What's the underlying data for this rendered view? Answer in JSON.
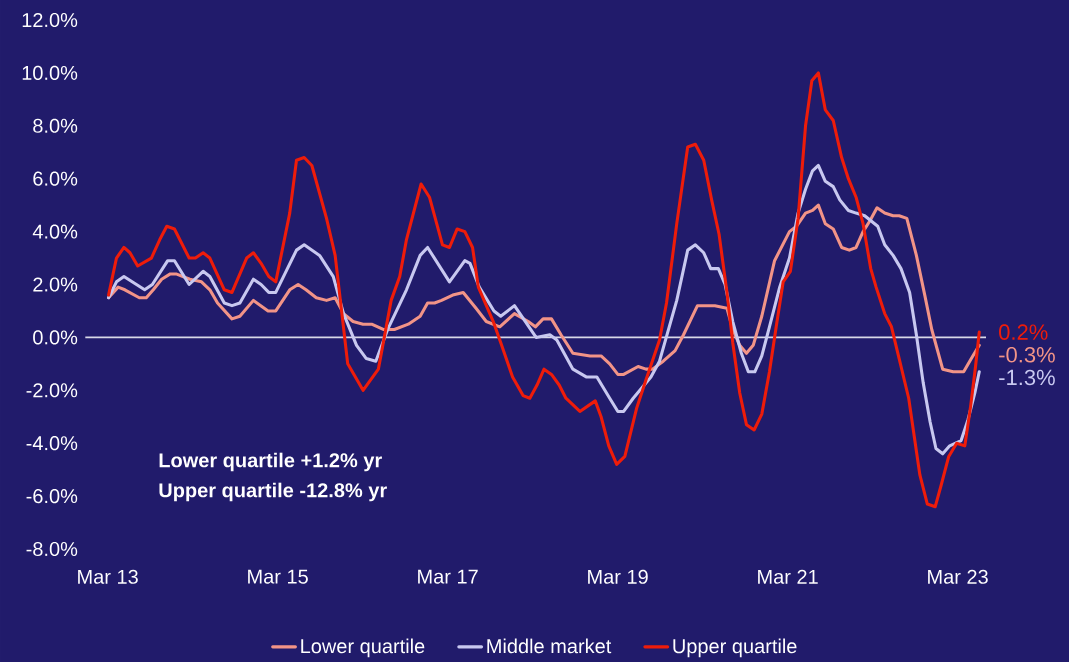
{
  "chart_data": {
    "type": "line",
    "xlim": [
      "2012-11-25",
      "2023-07-01"
    ],
    "ylim": [
      -8,
      12
    ],
    "xticks": [
      {
        "value": "2013-03",
        "label": "Mar 13"
      },
      {
        "value": "2015-03",
        "label": "Mar 15"
      },
      {
        "value": "2017-03",
        "label": "Mar 17"
      },
      {
        "value": "2019-03",
        "label": "Mar 19"
      },
      {
        "value": "2021-03",
        "label": "Mar 21"
      },
      {
        "value": "2023-03",
        "label": "Mar 23"
      }
    ],
    "yticks": [
      {
        "value": -8,
        "label": "-8.0%"
      },
      {
        "value": -6,
        "label": "-6.0%"
      },
      {
        "value": -4,
        "label": "-4.0%"
      },
      {
        "value": -2,
        "label": "-2.0%"
      },
      {
        "value": 0,
        "label": "0.0%"
      },
      {
        "value": 2,
        "label": "2.0%"
      },
      {
        "value": 4,
        "label": "4.0%"
      },
      {
        "value": 6,
        "label": "6.0%"
      },
      {
        "value": 8,
        "label": "8.0%"
      },
      {
        "value": 10,
        "label": "10.0%"
      },
      {
        "value": 12,
        "label": "12.0%"
      }
    ],
    "legend": "bottom",
    "marker": "none",
    "line_style": "solid",
    "ref_lines": [
      {
        "axis": "y",
        "value": 0,
        "color": "#d8d8e8"
      }
    ],
    "annotations": [
      "Lower quartile +1.2% yr",
      "Upper quartile -12.8% yr"
    ],
    "series": [
      {
        "name": "Lower quartile",
        "color": "#f29487",
        "x": [
          "2013-03-05",
          "2013-04-15",
          "2013-05-14",
          "2013-07-15",
          "2013-08-14",
          "2013-09-13",
          "2013-10-19",
          "2013-11-25",
          "2013-12-20",
          "2014-02-17",
          "2014-04-08",
          "2014-05-14",
          "2014-06-16",
          "2014-08-17",
          "2014-09-20",
          "2014-11-17",
          "2015-01-19",
          "2015-02-21",
          "2015-04-22",
          "2015-05-28",
          "2015-07-01",
          "2015-08-14",
          "2015-09-27",
          "2015-11-03",
          "2015-12-09",
          "2016-01-19",
          "2016-03-02",
          "2016-04-08",
          "2016-05-28",
          "2016-07-15",
          "2016-09-13",
          "2016-11-03",
          "2016-12-05",
          "2017-01-04",
          "2017-02-03",
          "2017-03-23",
          "2017-05-07",
          "2017-07-01",
          "2017-08-14",
          "2017-10-11",
          "2017-12-13",
          "2018-02-10",
          "2018-03-13",
          "2018-04-15",
          "2018-05-21",
          "2018-07-01",
          "2018-08-21",
          "2018-11-03",
          "2018-12-20",
          "2019-01-26",
          "2019-03-02",
          "2019-03-27",
          "2019-05-28",
          "2019-07-01",
          "2019-07-29",
          "2019-09-13",
          "2019-11-03",
          "2019-12-09",
          "2020-02-07",
          "2020-03-05",
          "2020-04-22",
          "2020-06-13",
          "2020-07-08",
          "2020-08-07",
          "2020-09-05",
          "2020-10-04",
          "2020-11-10",
          "2021-01-04",
          "2021-03-09",
          "2021-04-08",
          "2021-05-17",
          "2021-06-16",
          "2021-07-11",
          "2021-08-10",
          "2021-09-13",
          "2021-10-19",
          "2021-11-21",
          "2021-12-20",
          "2022-01-19",
          "2022-02-17",
          "2022-03-20",
          "2022-04-22",
          "2022-05-28",
          "2022-06-23",
          "2022-07-26",
          "2022-09-05",
          "2022-10-11",
          "2022-11-10",
          "2022-12-27",
          "2023-02-10",
          "2023-03-27",
          "2023-04-29",
          "2023-06-02"
        ],
        "values": [
          1.5,
          1.9,
          1.8,
          1.5,
          1.5,
          1.8,
          2.2,
          2.4,
          2.4,
          2.2,
          2.1,
          1.8,
          1.3,
          0.7,
          0.8,
          1.4,
          1.0,
          1.0,
          1.8,
          2.0,
          1.8,
          1.5,
          1.4,
          1.5,
          0.9,
          0.6,
          0.5,
          0.5,
          0.3,
          0.3,
          0.5,
          0.8,
          1.3,
          1.3,
          1.4,
          1.6,
          1.7,
          1.1,
          0.6,
          0.4,
          0.9,
          0.6,
          0.4,
          0.7,
          0.7,
          0.1,
          -0.6,
          -0.7,
          -0.7,
          -1.0,
          -1.4,
          -1.4,
          -1.1,
          -1.2,
          -1.2,
          -0.9,
          -0.5,
          0.1,
          1.2,
          1.2,
          1.2,
          1.1,
          0.3,
          -0.3,
          -0.6,
          -0.3,
          0.8,
          2.9,
          4.0,
          4.2,
          4.7,
          4.8,
          5.0,
          4.3,
          4.1,
          3.4,
          3.3,
          3.4,
          4.0,
          4.4,
          4.9,
          4.7,
          4.6,
          4.6,
          4.5,
          3.1,
          1.6,
          0.3,
          -1.2,
          -1.3,
          -1.3,
          -0.8,
          -0.3
        ],
        "value_labels": [
          null,
          null,
          null,
          null,
          null,
          null,
          null,
          null,
          null,
          null,
          null,
          null,
          null,
          null,
          null,
          null,
          null,
          null,
          null,
          null,
          null,
          null,
          null,
          null,
          null,
          null,
          null,
          null,
          null,
          null,
          null,
          null,
          null,
          null,
          null,
          null,
          null,
          null,
          null,
          null,
          null,
          null,
          null,
          null,
          null,
          null,
          null,
          null,
          null,
          null,
          null,
          null,
          null,
          null,
          null,
          null,
          null,
          null,
          null,
          null,
          null,
          null,
          null,
          null,
          null,
          null,
          null,
          null,
          null,
          null,
          null,
          null,
          null,
          null,
          null,
          null,
          null,
          null,
          null,
          null,
          null,
          null,
          null,
          null,
          null,
          null,
          null,
          null,
          null,
          null,
          null,
          null,
          "-0.3%"
        ]
      },
      {
        "name": "Middle market",
        "color": "#c8c8f0",
        "x": [
          "2013-03-05",
          "2013-04-08",
          "2013-05-10",
          "2013-08-07",
          "2013-09-09",
          "2013-11-14",
          "2013-12-13",
          "2014-02-14",
          "2014-04-15",
          "2014-05-14",
          "2014-07-15",
          "2014-08-17",
          "2014-09-20",
          "2014-11-17",
          "2014-12-20",
          "2015-01-22",
          "2015-02-21",
          "2015-05-21",
          "2015-06-23",
          "2015-07-26",
          "2015-08-28",
          "2015-10-26",
          "2015-12-09",
          "2016-02-03",
          "2016-03-16",
          "2016-04-26",
          "2016-06-16",
          "2016-09-05",
          "2016-11-03",
          "2016-12-05",
          "2017-03-09",
          "2017-05-14",
          "2017-06-05",
          "2017-07-15",
          "2017-09-16",
          "2017-10-15",
          "2017-12-13",
          "2018-03-16",
          "2018-05-14",
          "2018-06-13",
          "2018-08-21",
          "2018-10-19",
          "2018-12-02",
          "2019-01-26",
          "2019-03-02",
          "2019-03-27",
          "2019-05-07",
          "2019-07-22",
          "2019-08-28",
          "2019-11-10",
          "2019-12-27",
          "2020-01-29",
          "2020-03-05",
          "2020-04-04",
          "2020-05-07",
          "2020-06-05",
          "2020-07-08",
          "2020-08-14",
          "2020-09-13",
          "2020-10-11",
          "2020-11-10",
          "2020-12-13",
          "2021-01-26",
          "2021-03-09",
          "2021-04-15",
          "2021-05-17",
          "2021-06-16",
          "2021-07-11",
          "2021-08-10",
          "2021-09-13",
          "2021-10-11",
          "2021-11-17",
          "2021-12-20",
          "2022-01-26",
          "2022-03-23",
          "2022-04-22",
          "2022-05-28",
          "2022-07-01",
          "2022-08-07",
          "2022-09-05",
          "2022-10-04",
          "2022-11-03",
          "2022-11-28",
          "2022-12-27",
          "2023-01-26",
          "2023-03-16",
          "2023-04-15",
          "2023-05-14",
          "2023-06-02"
        ],
        "values": [
          1.5,
          2.1,
          2.3,
          1.8,
          2.0,
          2.9,
          2.9,
          2.0,
          2.5,
          2.3,
          1.3,
          1.2,
          1.3,
          2.2,
          2.0,
          1.7,
          1.7,
          3.3,
          3.5,
          3.3,
          3.1,
          2.3,
          0.9,
          -0.3,
          -0.8,
          -0.9,
          0.3,
          1.8,
          3.1,
          3.4,
          2.1,
          2.9,
          2.8,
          1.9,
          1.0,
          0.8,
          1.2,
          0.0,
          0.1,
          -0.1,
          -1.2,
          -1.5,
          -1.5,
          -2.3,
          -2.8,
          -2.8,
          -2.3,
          -1.5,
          -0.9,
          1.4,
          3.3,
          3.5,
          3.2,
          2.6,
          2.6,
          2.0,
          0.6,
          -0.6,
          -1.3,
          -1.3,
          -0.7,
          0.4,
          1.9,
          3.0,
          4.7,
          5.6,
          6.3,
          6.5,
          5.9,
          5.7,
          5.2,
          4.8,
          4.7,
          4.6,
          4.2,
          3.5,
          3.1,
          2.6,
          1.7,
          0.1,
          -1.7,
          -3.2,
          -4.2,
          -4.4,
          -4.1,
          -3.9,
          -3.1,
          -2.1,
          -1.3
        ],
        "value_labels": [
          null,
          null,
          null,
          null,
          null,
          null,
          null,
          null,
          null,
          null,
          null,
          null,
          null,
          null,
          null,
          null,
          null,
          null,
          null,
          null,
          null,
          null,
          null,
          null,
          null,
          null,
          null,
          null,
          null,
          null,
          null,
          null,
          null,
          null,
          null,
          null,
          null,
          null,
          null,
          null,
          null,
          null,
          null,
          null,
          null,
          null,
          null,
          null,
          null,
          null,
          null,
          null,
          null,
          null,
          null,
          null,
          null,
          null,
          null,
          null,
          null,
          null,
          null,
          null,
          null,
          null,
          null,
          null,
          null,
          null,
          null,
          null,
          null,
          null,
          null,
          null,
          null,
          null,
          null,
          null,
          null,
          null,
          null,
          null,
          null,
          null,
          null,
          null,
          "-1.3%"
        ]
      },
      {
        "name": "Upper quartile",
        "color": "#ee1c0a",
        "x": [
          "2013-03-05",
          "2013-04-08",
          "2013-05-10",
          "2013-06-05",
          "2013-07-08",
          "2013-09-05",
          "2013-10-11",
          "2013-11-10",
          "2013-12-13",
          "2014-02-14",
          "2014-03-13",
          "2014-04-15",
          "2014-05-14",
          "2014-07-15",
          "2014-08-17",
          "2014-10-19",
          "2014-11-17",
          "2014-12-20",
          "2015-01-22",
          "2015-02-21",
          "2015-04-22",
          "2015-05-21",
          "2015-06-23",
          "2015-07-26",
          "2015-09-27",
          "2015-11-03",
          "2015-12-27",
          "2016-03-02",
          "2016-05-07",
          "2016-07-01",
          "2016-08-07",
          "2016-09-05",
          "2016-11-07",
          "2016-12-13",
          "2017-02-07",
          "2017-03-09",
          "2017-04-11",
          "2017-05-14",
          "2017-06-16",
          "2017-07-11",
          "2017-09-13",
          "2017-10-19",
          "2017-12-05",
          "2018-01-19",
          "2018-02-17",
          "2018-03-20",
          "2018-04-19",
          "2018-05-21",
          "2018-06-23",
          "2018-07-22",
          "2018-09-20",
          "2018-11-25",
          "2018-12-20",
          "2019-01-22",
          "2019-02-25",
          "2019-04-01",
          "2019-05-21",
          "2019-07-01",
          "2019-08-28",
          "2019-09-27",
          "2019-11-10",
          "2019-12-27",
          "2020-01-29",
          "2020-03-05",
          "2020-04-08",
          "2020-05-10",
          "2020-06-13",
          "2020-07-08",
          "2020-08-07",
          "2020-09-05",
          "2020-10-08",
          "2020-11-10",
          "2020-12-13",
          "2021-01-11",
          "2021-02-10",
          "2021-03-13",
          "2021-04-15",
          "2021-05-17",
          "2021-06-13",
          "2021-07-11",
          "2021-08-10",
          "2021-09-13",
          "2021-10-19",
          "2021-11-17",
          "2021-12-20",
          "2022-01-19",
          "2022-02-21",
          "2022-03-16",
          "2022-04-22",
          "2022-05-21",
          "2022-06-23",
          "2022-08-03",
          "2022-09-20",
          "2022-10-22",
          "2022-11-25",
          "2022-12-20",
          "2023-01-22",
          "2023-02-25",
          "2023-04-01",
          "2023-04-26",
          "2023-05-17",
          "2023-06-02"
        ],
        "values": [
          1.6,
          3.0,
          3.4,
          3.2,
          2.7,
          3.0,
          3.7,
          4.2,
          4.1,
          3.0,
          3.0,
          3.2,
          3.0,
          1.8,
          1.7,
          3.0,
          3.2,
          2.8,
          2.3,
          2.1,
          4.7,
          6.7,
          6.8,
          6.5,
          4.5,
          3.1,
          -1.0,
          -2.0,
          -1.2,
          1.4,
          2.3,
          3.7,
          5.8,
          5.3,
          3.5,
          3.4,
          4.1,
          4.0,
          3.4,
          1.9,
          0.6,
          -0.3,
          -1.5,
          -2.2,
          -2.3,
          -1.8,
          -1.2,
          -1.4,
          -1.8,
          -2.3,
          -2.8,
          -2.4,
          -3.0,
          -4.1,
          -4.8,
          -4.5,
          -2.7,
          -1.6,
          -0.1,
          1.3,
          4.3,
          7.2,
          7.3,
          6.7,
          5.2,
          3.9,
          1.7,
          -0.2,
          -2.1,
          -3.3,
          -3.5,
          -2.9,
          -1.3,
          0.4,
          2.1,
          2.5,
          4.5,
          8.0,
          9.7,
          10.0,
          8.6,
          8.2,
          6.8,
          6.0,
          5.3,
          4.3,
          2.6,
          1.9,
          0.9,
          0.4,
          -0.8,
          -2.3,
          -5.2,
          -6.3,
          -6.4,
          -5.6,
          -4.5,
          -4.0,
          -4.1,
          -2.6,
          -1.1,
          0.2
        ],
        "value_labels": [
          null,
          null,
          null,
          null,
          null,
          null,
          null,
          null,
          null,
          null,
          null,
          null,
          null,
          null,
          null,
          null,
          null,
          null,
          null,
          null,
          null,
          null,
          null,
          null,
          null,
          null,
          null,
          null,
          null,
          null,
          null,
          null,
          null,
          null,
          null,
          null,
          null,
          null,
          null,
          null,
          null,
          null,
          null,
          null,
          null,
          null,
          null,
          null,
          null,
          null,
          null,
          null,
          null,
          null,
          null,
          null,
          null,
          null,
          null,
          null,
          null,
          null,
          null,
          null,
          null,
          null,
          null,
          null,
          null,
          null,
          null,
          null,
          null,
          null,
          null,
          null,
          null,
          null,
          null,
          null,
          null,
          null,
          null,
          null,
          null,
          null,
          null,
          null,
          null,
          null,
          null,
          null,
          null,
          null,
          null,
          null,
          null,
          null,
          null,
          null,
          null,
          "0.2%"
        ]
      }
    ]
  }
}
